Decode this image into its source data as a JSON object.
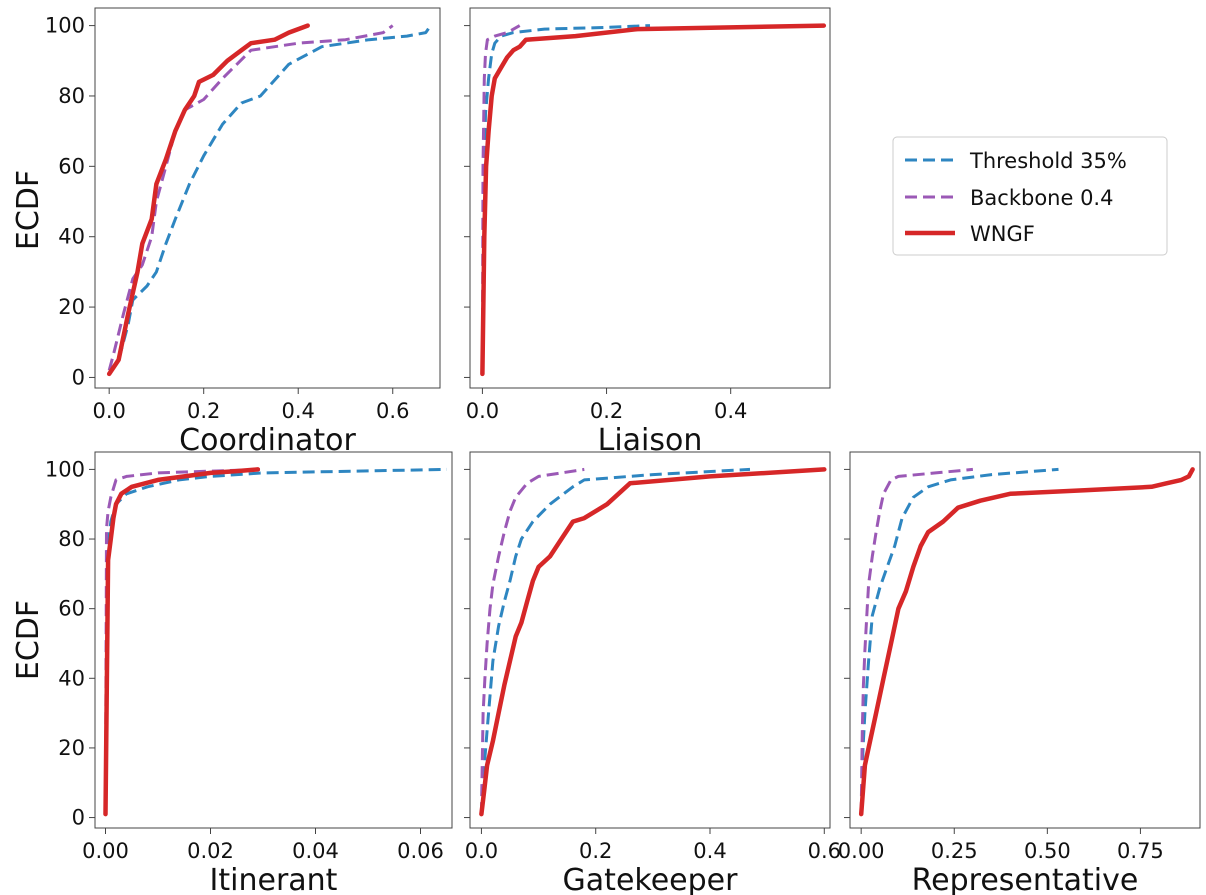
{
  "chart_data": {
    "type": "line",
    "ylabel": "ECDF",
    "ylim": [
      0,
      100
    ],
    "y_ticks": [
      "0",
      "20",
      "40",
      "60",
      "80",
      "100"
    ],
    "legend": {
      "placement": "right",
      "entries": [
        {
          "name": "Threshold 35%",
          "color": "#2e86c1",
          "style": "dashed"
        },
        {
          "name": "Backbone 0.4",
          "color": "#9b59b6",
          "style": "dashed"
        },
        {
          "name": "WNGF",
          "color": "#d62728",
          "style": "solid"
        }
      ]
    },
    "panels": [
      {
        "id": "coordinator",
        "xlabel": "Coordinator",
        "xlim": [
          -0.03,
          0.7
        ],
        "x_ticks": [
          0.0,
          0.2,
          0.4,
          0.6
        ],
        "x_tick_labels": [
          "0.0",
          "0.2",
          "0.4",
          "0.6"
        ],
        "show_ylabel": true,
        "series": [
          {
            "name": "Threshold 35%",
            "color": "#2e86c1",
            "style": "dashed",
            "x": [
              0,
              0.02,
              0.04,
              0.05,
              0.08,
              0.1,
              0.12,
              0.14,
              0.17,
              0.2,
              0.24,
              0.28,
              0.32,
              0.38,
              0.45,
              0.55,
              0.63,
              0.67,
              0.68
            ],
            "y": [
              1,
              5,
              15,
              22,
              26,
              30,
              38,
              45,
              55,
              63,
              72,
              78,
              80,
              89,
              94,
              96,
              97,
              98,
              100
            ]
          },
          {
            "name": "Backbone 0.4",
            "color": "#9b59b6",
            "style": "dashed",
            "x": [
              0,
              0.01,
              0.03,
              0.05,
              0.07,
              0.09,
              0.1,
              0.12,
              0.14,
              0.16,
              0.2,
              0.24,
              0.3,
              0.4,
              0.5,
              0.58,
              0.6
            ],
            "y": [
              2,
              7,
              18,
              28,
              32,
              40,
              50,
              60,
              70,
              76,
              79,
              85,
              93,
              95,
              96,
              98,
              100
            ]
          },
          {
            "name": "WNGF",
            "color": "#d62728",
            "style": "solid",
            "x": [
              0,
              0.02,
              0.04,
              0.06,
              0.07,
              0.09,
              0.1,
              0.12,
              0.14,
              0.16,
              0.18,
              0.19,
              0.22,
              0.25,
              0.28,
              0.3,
              0.35,
              0.38,
              0.42
            ],
            "y": [
              1,
              5,
              18,
              30,
              38,
              45,
              55,
              62,
              70,
              76,
              80,
              84,
              86,
              90,
              93,
              95,
              96,
              98,
              100
            ]
          }
        ]
      },
      {
        "id": "liaison",
        "xlabel": "Liaison",
        "xlim": [
          -0.02,
          0.56
        ],
        "x_ticks": [
          0.0,
          0.2,
          0.4
        ],
        "x_tick_labels": [
          "0.0",
          "0.2",
          "0.4"
        ],
        "show_ylabel": false,
        "series": [
          {
            "name": "Threshold 35%",
            "color": "#2e86c1",
            "style": "dashed",
            "x": [
              0,
              0.002,
              0.005,
              0.01,
              0.015,
              0.02,
              0.03,
              0.05,
              0.1,
              0.2,
              0.27
            ],
            "y": [
              1,
              50,
              75,
              85,
              92,
              95,
              97,
              98,
              99,
              99.5,
              100
            ]
          },
          {
            "name": "Backbone 0.4",
            "color": "#9b59b6",
            "style": "dashed",
            "x": [
              0,
              0.001,
              0.003,
              0.005,
              0.008,
              0.02,
              0.04,
              0.06
            ],
            "y": [
              1,
              60,
              85,
              92,
              96,
              97,
              98,
              100
            ]
          },
          {
            "name": "WNGF",
            "color": "#d62728",
            "style": "solid",
            "x": [
              0,
              0.003,
              0.006,
              0.01,
              0.015,
              0.02,
              0.03,
              0.04,
              0.05,
              0.06,
              0.07,
              0.15,
              0.25,
              0.4,
              0.55
            ],
            "y": [
              1,
              40,
              60,
              70,
              80,
              85,
              88,
              91,
              93,
              94,
              96,
              97,
              99,
              99.5,
              100
            ]
          }
        ]
      },
      {
        "id": "itinerant",
        "xlabel": "Itinerant",
        "xlim": [
          -0.002,
          0.066
        ],
        "x_ticks": [
          0.0,
          0.02,
          0.04,
          0.06
        ],
        "x_tick_labels": [
          "0.00",
          "0.02",
          "0.04",
          "0.06"
        ],
        "show_ylabel": true,
        "series": [
          {
            "name": "Threshold 35%",
            "color": "#2e86c1",
            "style": "dashed",
            "x": [
              0,
              0.0003,
              0.001,
              0.002,
              0.004,
              0.008,
              0.014,
              0.02,
              0.03,
              0.065
            ],
            "y": [
              1,
              75,
              85,
              90,
              93,
              95,
              97,
              98,
              99,
              100
            ]
          },
          {
            "name": "Backbone 0.4",
            "color": "#9b59b6",
            "style": "dashed",
            "x": [
              0,
              0.0002,
              0.0005,
              0.001,
              0.002,
              0.004,
              0.01,
              0.03
            ],
            "y": [
              1,
              83,
              88,
              92,
              97,
              98,
              99,
              100
            ]
          },
          {
            "name": "WNGF",
            "color": "#d62728",
            "style": "solid",
            "x": [
              0,
              0.0005,
              0.001,
              0.0015,
              0.002,
              0.003,
              0.005,
              0.01,
              0.015,
              0.02,
              0.025,
              0.029
            ],
            "y": [
              1,
              74,
              80,
              86,
              90,
              93,
              95,
              97,
              98,
              99,
              99.5,
              100
            ]
          }
        ]
      },
      {
        "id": "gatekeeper",
        "xlabel": "Gatekeeper",
        "xlim": [
          -0.02,
          0.61
        ],
        "x_ticks": [
          0.0,
          0.2,
          0.4,
          0.6
        ],
        "x_tick_labels": [
          "0.0",
          "0.2",
          "0.4",
          "0.6"
        ],
        "show_ylabel": false,
        "series": [
          {
            "name": "Threshold 35%",
            "color": "#2e86c1",
            "style": "dashed",
            "x": [
              0,
              0.005,
              0.01,
              0.015,
              0.02,
              0.03,
              0.04,
              0.05,
              0.06,
              0.07,
              0.09,
              0.12,
              0.16,
              0.18,
              0.3,
              0.47
            ],
            "y": [
              1,
              15,
              25,
              35,
              45,
              55,
              62,
              68,
              75,
              80,
              85,
              90,
              95,
              97,
              98.5,
              100
            ]
          },
          {
            "name": "Backbone 0.4",
            "color": "#9b59b6",
            "style": "dashed",
            "x": [
              0,
              0.003,
              0.006,
              0.01,
              0.015,
              0.02,
              0.03,
              0.04,
              0.05,
              0.06,
              0.08,
              0.1,
              0.14,
              0.18
            ],
            "y": [
              1,
              30,
              40,
              50,
              60,
              67,
              75,
              82,
              88,
              92,
              96,
              98,
              99,
              100
            ]
          },
          {
            "name": "WNGF",
            "color": "#d62728",
            "style": "solid",
            "x": [
              0,
              0.005,
              0.01,
              0.02,
              0.03,
              0.04,
              0.05,
              0.06,
              0.07,
              0.08,
              0.09,
              0.1,
              0.12,
              0.14,
              0.16,
              0.18,
              0.22,
              0.26,
              0.4,
              0.6
            ],
            "y": [
              1,
              8,
              15,
              22,
              30,
              38,
              45,
              52,
              56,
              62,
              68,
              72,
              75,
              80,
              85,
              86,
              90,
              96,
              98,
              100
            ]
          }
        ]
      },
      {
        "id": "representative",
        "xlabel": "Representative",
        "xlim": [
          -0.03,
          0.91
        ],
        "x_ticks": [
          0.0,
          0.25,
          0.5,
          0.75
        ],
        "x_tick_labels": [
          "0.00",
          "0.25",
          "0.50",
          "0.75"
        ],
        "show_ylabel": false,
        "series": [
          {
            "name": "Threshold 35%",
            "color": "#2e86c1",
            "style": "dashed",
            "x": [
              0,
              0.005,
              0.01,
              0.02,
              0.03,
              0.05,
              0.07,
              0.09,
              0.11,
              0.14,
              0.18,
              0.24,
              0.35,
              0.53
            ],
            "y": [
              1,
              20,
              30,
              45,
              58,
              66,
              72,
              78,
              86,
              92,
              95,
              97,
              98.5,
              100
            ]
          },
          {
            "name": "Backbone 0.4",
            "color": "#9b59b6",
            "style": "dashed",
            "x": [
              0,
              0.003,
              0.006,
              0.01,
              0.015,
              0.02,
              0.03,
              0.04,
              0.05,
              0.06,
              0.08,
              0.1,
              0.2,
              0.3
            ],
            "y": [
              1,
              25,
              38,
              48,
              58,
              67,
              75,
              82,
              88,
              93,
              97,
              98,
              99,
              100
            ]
          },
          {
            "name": "WNGF",
            "color": "#d62728",
            "style": "solid",
            "x": [
              0,
              0.01,
              0.02,
              0.04,
              0.06,
              0.08,
              0.1,
              0.12,
              0.14,
              0.16,
              0.18,
              0.22,
              0.26,
              0.32,
              0.4,
              0.6,
              0.78,
              0.82,
              0.86,
              0.88,
              0.89
            ],
            "y": [
              1,
              15,
              20,
              30,
              40,
              50,
              60,
              65,
              72,
              78,
              82,
              85,
              89,
              91,
              93,
              94,
              95,
              96,
              97,
              98,
              100
            ]
          }
        ]
      }
    ]
  }
}
